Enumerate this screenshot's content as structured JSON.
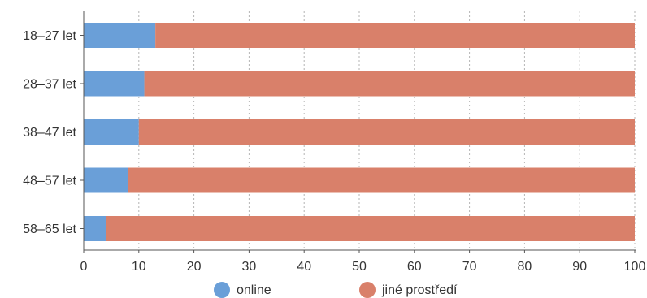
{
  "chart_data": {
    "type": "bar",
    "orientation": "horizontal",
    "stacked": true,
    "title": "",
    "xlabel": "",
    "ylabel": "",
    "categories": [
      "18–27 let",
      "28–37 let",
      "38–47 let",
      "48–57 let",
      "58–65 let"
    ],
    "series": [
      {
        "name": "online",
        "color": "#6a9fd8",
        "values": [
          13,
          11,
          10,
          8,
          4
        ]
      },
      {
        "name": "jiné prostředí",
        "color": "#d9806a",
        "values": [
          87,
          89,
          90,
          92,
          96
        ]
      }
    ],
    "xlim": [
      0,
      100
    ],
    "xticks": [
      "0",
      "10",
      "20",
      "30",
      "40",
      "50",
      "60",
      "70",
      "80",
      "90",
      "100"
    ],
    "grid": "vertical dashed",
    "legend_position": "bottom"
  }
}
